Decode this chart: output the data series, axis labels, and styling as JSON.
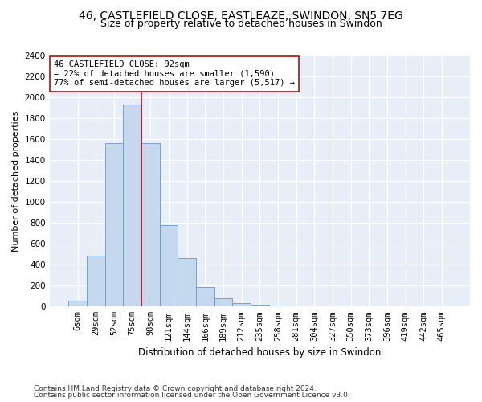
{
  "title1": "46, CASTLEFIELD CLOSE, EASTLEAZE, SWINDON, SN5 7EG",
  "title2": "Size of property relative to detached houses in Swindon",
  "xlabel": "Distribution of detached houses by size in Swindon",
  "ylabel": "Number of detached properties",
  "footer1": "Contains HM Land Registry data © Crown copyright and database right 2024.",
  "footer2": "Contains public sector information licensed under the Open Government Licence v3.0.",
  "annotation_title": "46 CASTLEFIELD CLOSE: 92sqm",
  "annotation_line1": "← 22% of detached houses are smaller (1,590)",
  "annotation_line2": "77% of semi-detached houses are larger (5,517) →",
  "bar_categories": [
    "6sqm",
    "29sqm",
    "52sqm",
    "75sqm",
    "98sqm",
    "121sqm",
    "144sqm",
    "166sqm",
    "189sqm",
    "212sqm",
    "235sqm",
    "258sqm",
    "281sqm",
    "304sqm",
    "327sqm",
    "350sqm",
    "373sqm",
    "396sqm",
    "419sqm",
    "442sqm",
    "465sqm"
  ],
  "bar_heights": [
    55,
    490,
    1560,
    1930,
    1560,
    780,
    460,
    185,
    80,
    30,
    18,
    8,
    2,
    2,
    2,
    2,
    2,
    2,
    2,
    2,
    2
  ],
  "bar_color": "#c5d8ee",
  "bar_edge_color": "#6699cc",
  "vline_color": "#aa1111",
  "ylim": [
    0,
    2400
  ],
  "yticks": [
    0,
    200,
    400,
    600,
    800,
    1000,
    1200,
    1400,
    1600,
    1800,
    2000,
    2200,
    2400
  ],
  "bg_color": "#e8eef8",
  "ann_bg": "#ffffff",
  "ann_edge": "#aa1111",
  "title1_fontsize": 10,
  "title2_fontsize": 9,
  "ylabel_fontsize": 8,
  "xlabel_fontsize": 8.5,
  "tick_fontsize": 7.5,
  "ann_fontsize": 7.5,
  "footer_fontsize": 6.5
}
